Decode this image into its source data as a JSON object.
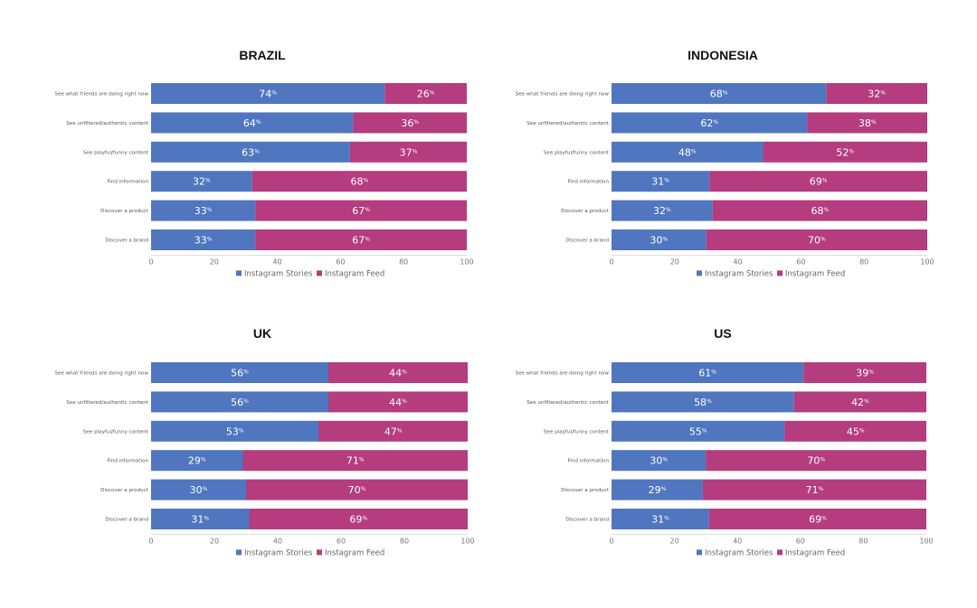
{
  "chart_data": [
    {
      "type": "bar",
      "orientation": "horizontal",
      "stacked": true,
      "title": "BRAZIL",
      "categories": [
        "See what friends are doing right now",
        "See unfiltered/authentic content",
        "See playful/funny content",
        "Find information",
        "Discover a product",
        "Discover a brand"
      ],
      "series": [
        {
          "name": "Instagram Stories",
          "values": [
            74,
            64,
            63,
            32,
            33,
            33
          ]
        },
        {
          "name": "Instagram Feed",
          "values": [
            26,
            36,
            37,
            68,
            67,
            67
          ]
        }
      ],
      "value_suffix": "%",
      "xlim": [
        0,
        100
      ],
      "xticks": [
        0,
        20,
        40,
        60,
        80,
        100
      ],
      "legend": "bottom"
    },
    {
      "type": "bar",
      "orientation": "horizontal",
      "stacked": true,
      "title": "INDONESIA",
      "categories": [
        "See what friends are doing right now",
        "See unfiltered/authentic content",
        "See playful/funny content",
        "Find information",
        "Discover a product",
        "Discover a brand"
      ],
      "series": [
        {
          "name": "Instagram Stories",
          "values": [
            68,
            62,
            48,
            31,
            32,
            30
          ]
        },
        {
          "name": "Instagram Feed",
          "values": [
            32,
            38,
            52,
            69,
            68,
            70
          ]
        }
      ],
      "value_suffix": "%",
      "xlim": [
        0,
        100
      ],
      "xticks": [
        0,
        20,
        40,
        60,
        80,
        100
      ],
      "legend": "bottom"
    },
    {
      "type": "bar",
      "orientation": "horizontal",
      "stacked": true,
      "title": "UK",
      "categories": [
        "See what friends are doing right now",
        "See unfiltered/authentic content",
        "See playful/funny content",
        "Find information",
        "Discover a product",
        "Discover a brand"
      ],
      "series": [
        {
          "name": "Instagram Stories",
          "values": [
            56,
            56,
            53,
            29,
            30,
            31
          ]
        },
        {
          "name": "Instagram Feed",
          "values": [
            44,
            44,
            47,
            71,
            70,
            69
          ]
        }
      ],
      "value_suffix": "%",
      "xlim": [
        0,
        100
      ],
      "xticks": [
        0,
        20,
        40,
        60,
        80,
        100
      ],
      "legend": "bottom"
    },
    {
      "type": "bar",
      "orientation": "horizontal",
      "stacked": true,
      "title": "US",
      "categories": [
        "See what friends are doing right now",
        "See unfiltered/authentic content",
        "See playful/funny content",
        "Find information",
        "Discover a product",
        "Discover a brand"
      ],
      "series": [
        {
          "name": "Instagram Stories",
          "values": [
            61,
            58,
            55,
            30,
            29,
            31
          ]
        },
        {
          "name": "Instagram Feed",
          "values": [
            39,
            42,
            45,
            70,
            71,
            69
          ]
        }
      ],
      "value_suffix": "%",
      "xlim": [
        0,
        100
      ],
      "xticks": [
        0,
        20,
        40,
        60,
        80,
        100
      ],
      "legend": "bottom"
    }
  ],
  "colors": {
    "stories": "#5076bf",
    "feed": "#b43c7f",
    "axis": "#cccccc"
  }
}
